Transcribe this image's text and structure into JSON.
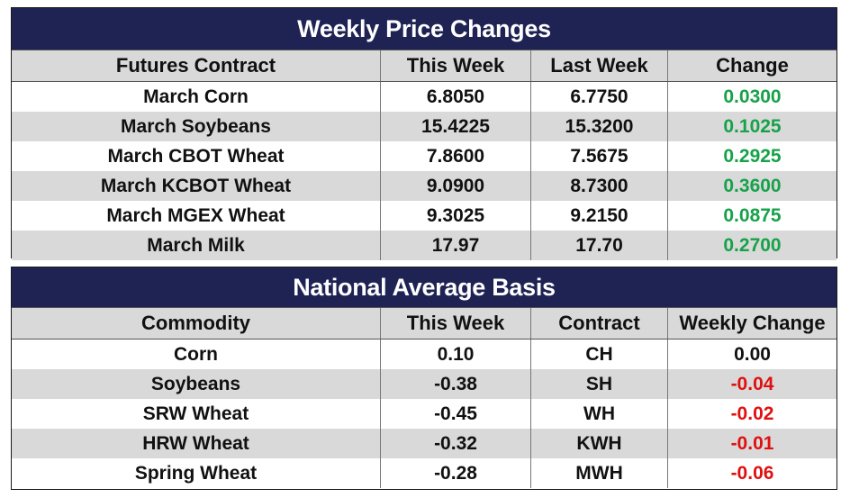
{
  "weekly": {
    "title": "Weekly Price Changes",
    "headers": [
      "Futures Contract",
      "This Week",
      "Last Week",
      "Change"
    ],
    "rows": [
      {
        "contract": "March Corn",
        "this_week": "6.8050",
        "last_week": "6.7750",
        "change": "0.0300"
      },
      {
        "contract": "March Soybeans",
        "this_week": "15.4225",
        "last_week": "15.3200",
        "change": "0.1025"
      },
      {
        "contract": "March CBOT Wheat",
        "this_week": "7.8600",
        "last_week": "7.5675",
        "change": "0.2925"
      },
      {
        "contract": "March KCBOT Wheat",
        "this_week": "9.0900",
        "last_week": "8.7300",
        "change": "0.3600"
      },
      {
        "contract": "March MGEX Wheat",
        "this_week": "9.3025",
        "last_week": "9.2150",
        "change": "0.0875"
      },
      {
        "contract": "March Milk",
        "this_week": "17.97",
        "last_week": "17.70",
        "change": "0.2700"
      }
    ]
  },
  "basis": {
    "title": "National Average Basis",
    "headers": [
      "Commodity",
      "This Week",
      "Contract",
      "Weekly Change"
    ],
    "rows": [
      {
        "commodity": "Corn",
        "this_week": "0.10",
        "contract": "CH",
        "weekly_change": "0.00"
      },
      {
        "commodity": "Soybeans",
        "this_week": "-0.38",
        "contract": "SH",
        "weekly_change": "-0.04"
      },
      {
        "commodity": "SRW Wheat",
        "this_week": "-0.45",
        "contract": "WH",
        "weekly_change": "-0.02"
      },
      {
        "commodity": "HRW Wheat",
        "this_week": "-0.32",
        "contract": "KWH",
        "weekly_change": "-0.01"
      },
      {
        "commodity": "Spring Wheat",
        "this_week": "-0.28",
        "contract": "MWH",
        "weekly_change": "-0.06"
      }
    ]
  },
  "colors": {
    "title_bg": "#1f2354",
    "header_bg": "#d9d9d9",
    "positive": "#17a24a",
    "negative": "#e01010"
  }
}
